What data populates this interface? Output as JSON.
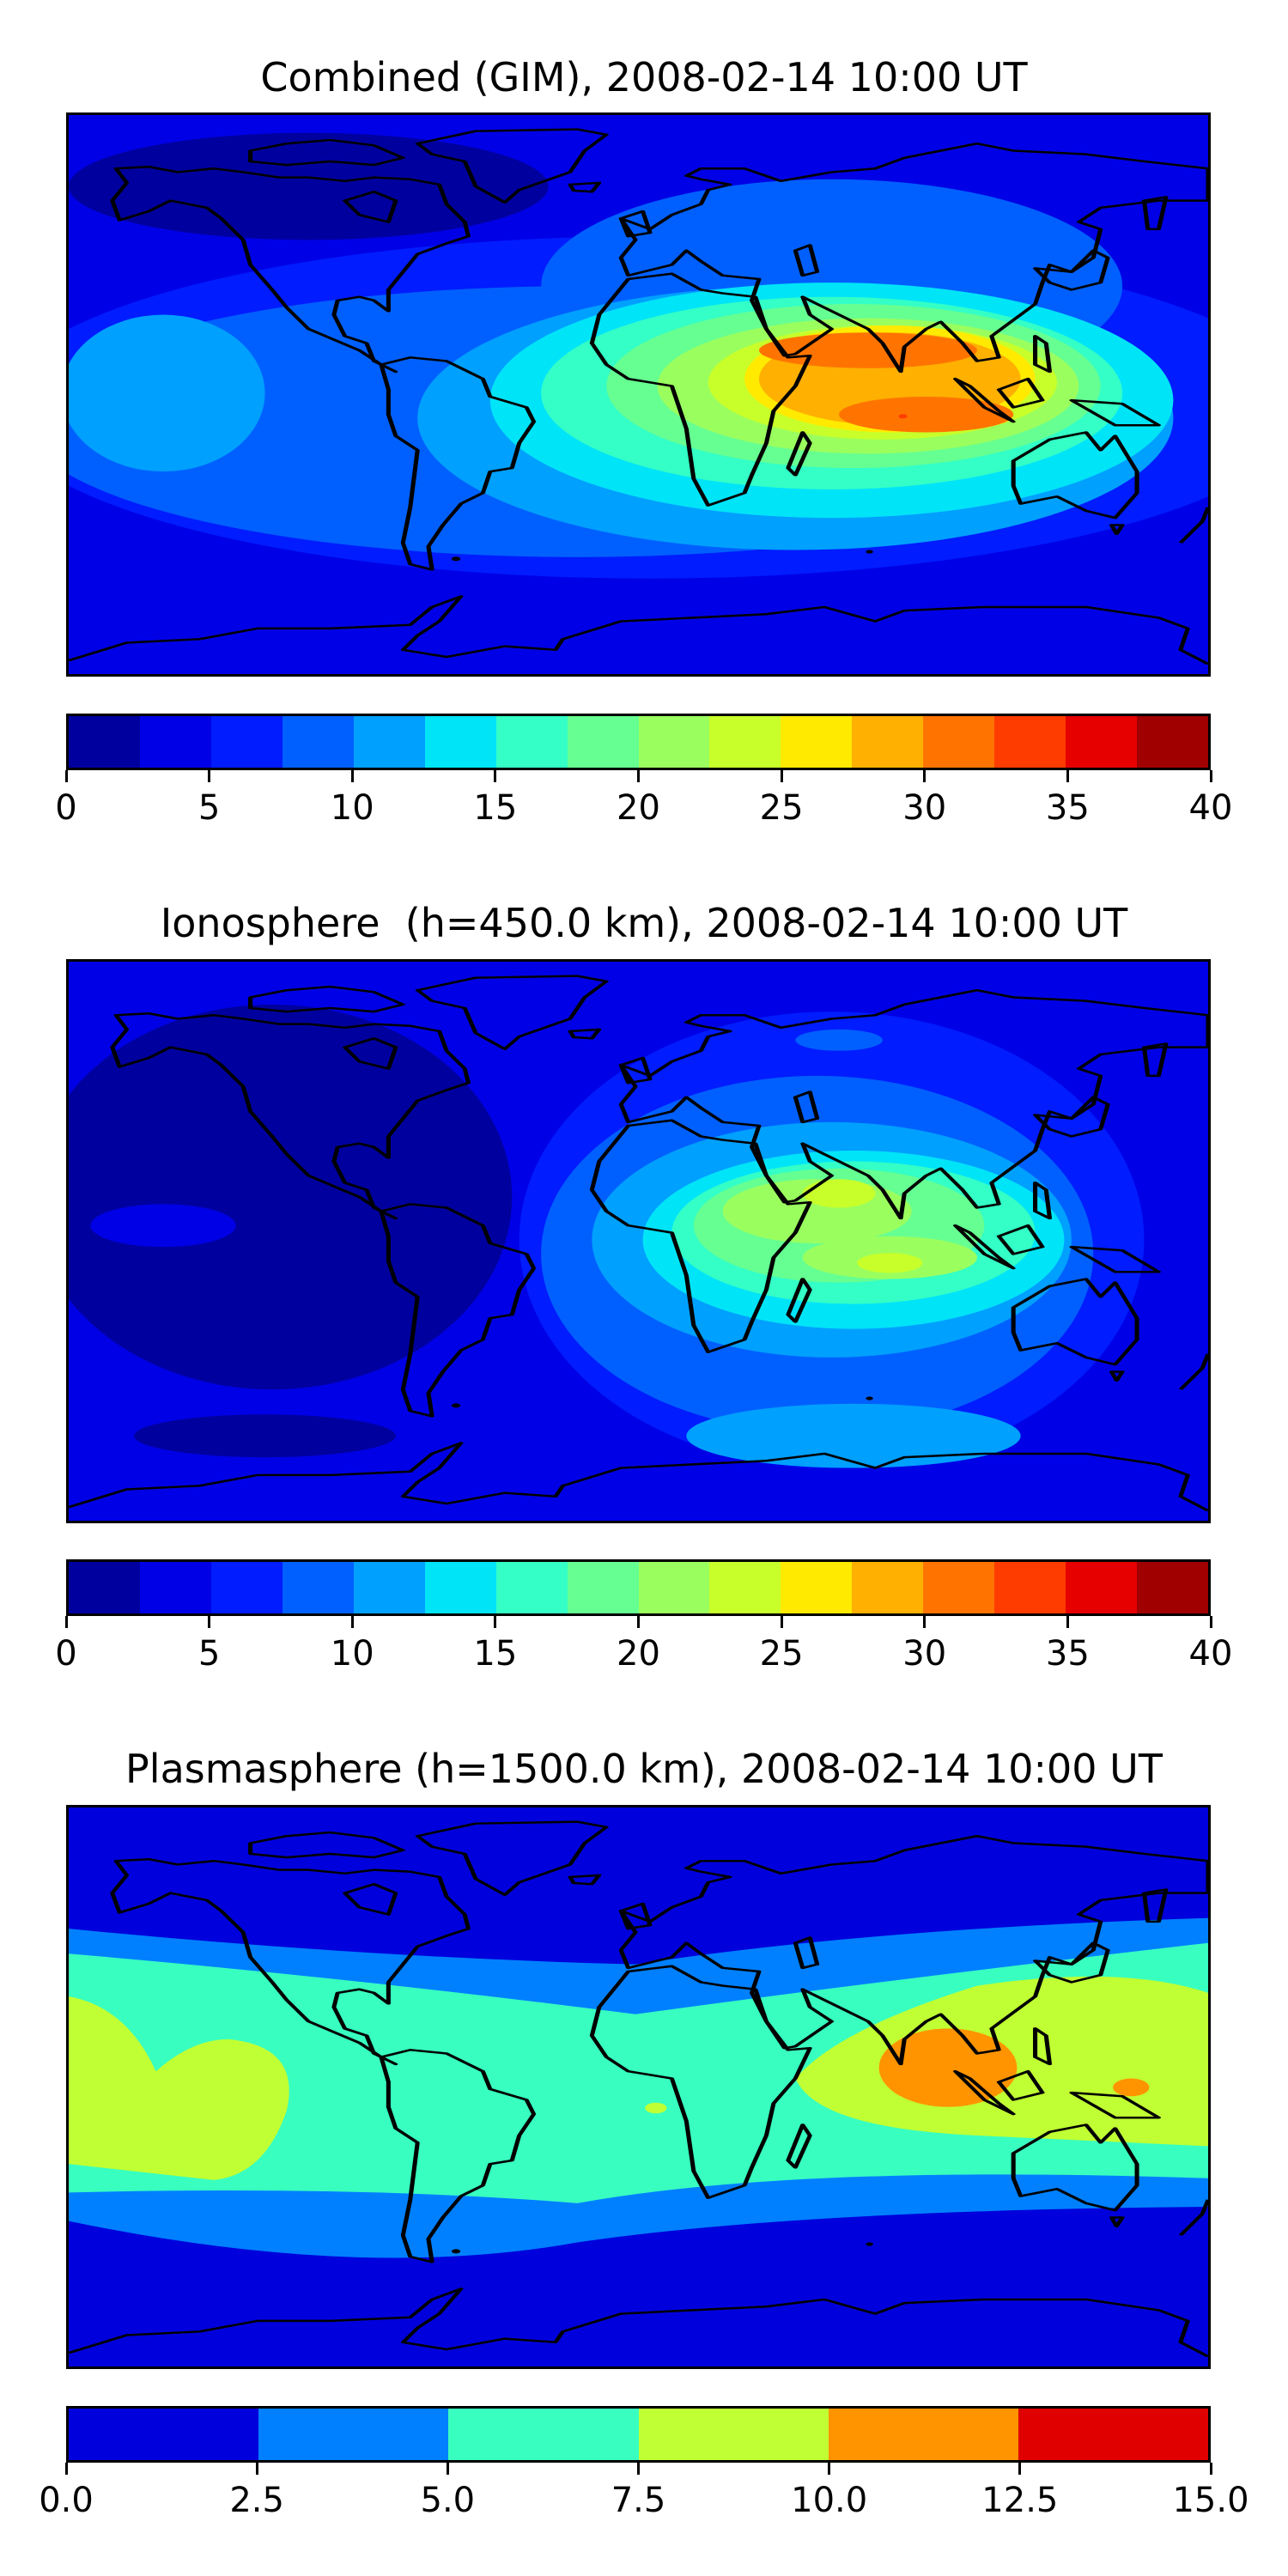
{
  "chart_data": [
    {
      "type": "heatmap",
      "title": "Combined (GIM), 2008-02-14 10:00 UT",
      "projection": "plate carree world map with coastlines",
      "colorbar": {
        "ticks": [
          "0",
          "5",
          "10",
          "15",
          "20",
          "25",
          "30",
          "35",
          "40"
        ],
        "range": [
          0,
          40
        ],
        "levels": [
          0,
          2.5,
          5,
          7.5,
          10,
          12.5,
          15,
          17.5,
          20,
          22.5,
          25,
          27.5,
          30,
          32.5,
          35,
          37.5,
          40
        ],
        "colors": [
          "#00009f",
          "#0000e6",
          "#001cff",
          "#0060ff",
          "#00a0ff",
          "#00e4f8",
          "#33ffc6",
          "#66ff92",
          "#9aff5e",
          "#c8ff2a",
          "#ffea00",
          "#ffb000",
          "#ff7400",
          "#ff3c00",
          "#e60000",
          "#a00000"
        ]
      },
      "max_region": "Indian Ocean / South Asia, values 30-32.5",
      "min_region": "North America / Arctic, values 0-2.5"
    },
    {
      "type": "heatmap",
      "title": "Ionosphere  (h=450.0 km), 2008-02-14 10:00 UT",
      "projection": "plate carree world map with coastlines",
      "colorbar": {
        "ticks": [
          "0",
          "5",
          "10",
          "15",
          "20",
          "25",
          "30",
          "35",
          "40"
        ],
        "range": [
          0,
          40
        ],
        "levels": [
          0,
          2.5,
          5,
          7.5,
          10,
          12.5,
          15,
          17.5,
          20,
          22.5,
          25,
          27.5,
          30,
          32.5,
          35,
          37.5,
          40
        ],
        "colors": [
          "#00009f",
          "#0000e6",
          "#001cff",
          "#0060ff",
          "#00a0ff",
          "#00e4f8",
          "#33ffc6",
          "#66ff92",
          "#9aff5e",
          "#c8ff2a",
          "#ffea00",
          "#ffb000",
          "#ff7400",
          "#ff3c00",
          "#e60000",
          "#a00000"
        ]
      },
      "max_region": "Arabian Sea / Indian Ocean, values 22.5-25",
      "min_region": "Americas / Pacific, values 0-2.5"
    },
    {
      "type": "heatmap",
      "title": "Plasmasphere (h=1500.0 km), 2008-02-14 10:00 UT",
      "projection": "plate carree world map with coastlines",
      "colorbar": {
        "ticks": [
          "0.0",
          "2.5",
          "5.0",
          "7.5",
          "10.0",
          "12.5",
          "15.0"
        ],
        "range": [
          0,
          15
        ],
        "levels": [
          0,
          2.5,
          5,
          7.5,
          10,
          12.5,
          15
        ],
        "colors": [
          "#0000dd",
          "#0080ff",
          "#38ffc0",
          "#c0ff33",
          "#ff9400",
          "#e00000"
        ]
      },
      "max_region": "Southeast Asia, values 10-12.5",
      "min_region": "Polar regions, values 0-2.5"
    }
  ]
}
